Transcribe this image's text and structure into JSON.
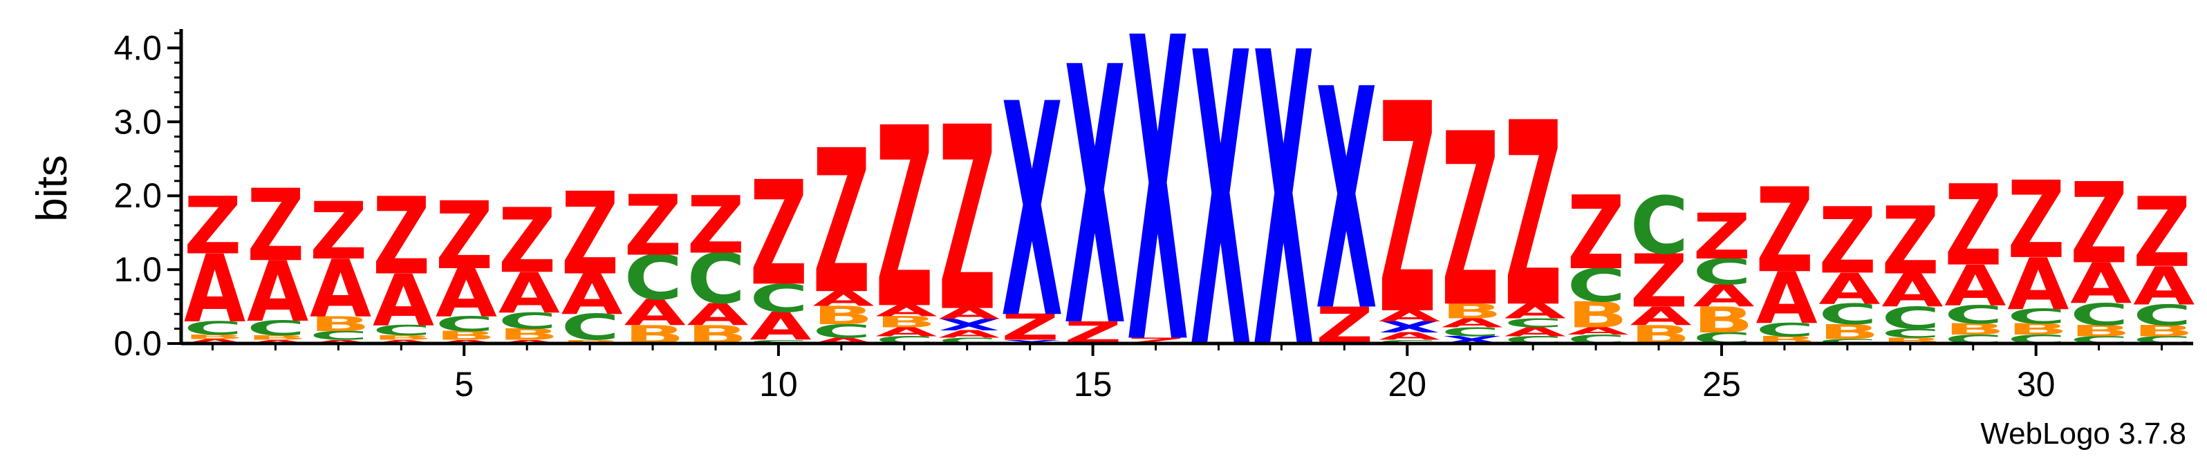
{
  "chart_data": {
    "type": "sequence-logo",
    "ylabel": "bits",
    "ylim": [
      0,
      4.2
    ],
    "y_ticks": [
      0.0,
      1.0,
      2.0,
      3.0,
      4.0
    ],
    "y_tick_labels": [
      "0.0",
      "1.0",
      "2.0",
      "3.0",
      "4.0"
    ],
    "y_minor_step": 0.2,
    "xlim": [
      0.5,
      32.5
    ],
    "x_ticks": [
      5,
      10,
      15,
      20,
      25,
      30
    ],
    "x_tick_labels": [
      "5",
      "10",
      "15",
      "20",
      "25",
      "30"
    ],
    "x_minor_step": 1,
    "colors": {
      "Z": "#ff0000",
      "A": "#ff0000",
      "X": "#0000ff",
      "C": "#228b22",
      "B": "#ff8c00"
    },
    "positions": [
      {
        "pos": 1,
        "stack": [
          [
            "A",
            0.06
          ],
          [
            "B",
            0.06
          ],
          [
            "C",
            0.18
          ],
          [
            "A",
            0.92
          ],
          [
            "Z",
            0.78
          ]
        ]
      },
      {
        "pos": 2,
        "stack": [
          [
            "A",
            0.05
          ],
          [
            "B",
            0.06
          ],
          [
            "C",
            0.2
          ],
          [
            "A",
            0.82
          ],
          [
            "Z",
            0.98
          ]
        ]
      },
      {
        "pos": 3,
        "stack": [
          [
            "A",
            0.05
          ],
          [
            "C",
            0.12
          ],
          [
            "B",
            0.2
          ],
          [
            "A",
            0.78
          ],
          [
            "Z",
            0.78
          ]
        ]
      },
      {
        "pos": 4,
        "stack": [
          [
            "A",
            0.05
          ],
          [
            "B",
            0.06
          ],
          [
            "C",
            0.14
          ],
          [
            "A",
            0.7
          ],
          [
            "Z",
            1.05
          ]
        ]
      },
      {
        "pos": 5,
        "stack": [
          [
            "A",
            0.05
          ],
          [
            "B",
            0.12
          ],
          [
            "C",
            0.2
          ],
          [
            "A",
            0.65
          ],
          [
            "Z",
            0.92
          ]
        ]
      },
      {
        "pos": 6,
        "stack": [
          [
            "A",
            0.05
          ],
          [
            "B",
            0.15
          ],
          [
            "C",
            0.22
          ],
          [
            "A",
            0.55
          ],
          [
            "Z",
            0.88
          ]
        ]
      },
      {
        "pos": 7,
        "stack": [
          [
            "B",
            0.05
          ],
          [
            "C",
            0.35
          ],
          [
            "A",
            0.55
          ],
          [
            "Z",
            1.12
          ]
        ]
      },
      {
        "pos": 8,
        "stack": [
          [
            "B",
            0.25
          ],
          [
            "A",
            0.35
          ],
          [
            "C",
            0.6
          ],
          [
            "Z",
            0.82
          ]
        ]
      },
      {
        "pos": 9,
        "stack": [
          [
            "B",
            0.25
          ],
          [
            "A",
            0.3
          ],
          [
            "C",
            0.68
          ],
          [
            "Z",
            0.78
          ]
        ]
      },
      {
        "pos": 10,
        "stack": [
          [
            "C",
            0.05
          ],
          [
            "A",
            0.38
          ],
          [
            "C",
            0.38
          ],
          [
            "Z",
            1.42
          ]
        ]
      },
      {
        "pos": 11,
        "stack": [
          [
            "A",
            0.08
          ],
          [
            "C",
            0.18
          ],
          [
            "B",
            0.25
          ],
          [
            "A",
            0.2
          ],
          [
            "Z",
            1.95
          ]
        ]
      },
      {
        "pos": 12,
        "stack": [
          [
            "C",
            0.1
          ],
          [
            "A",
            0.12
          ],
          [
            "B",
            0.15
          ],
          [
            "A",
            0.15
          ],
          [
            "Z",
            2.45
          ]
        ]
      },
      {
        "pos": 13,
        "stack": [
          [
            "C",
            0.08
          ],
          [
            "A",
            0.1
          ],
          [
            "X",
            0.15
          ],
          [
            "A",
            0.15
          ],
          [
            "Z",
            2.5
          ]
        ]
      },
      {
        "pos": 14,
        "stack": [
          [
            "X",
            0.05
          ],
          [
            "Z",
            0.35
          ],
          [
            "X",
            2.9
          ]
        ]
      },
      {
        "pos": 15,
        "stack": [
          [
            "Z",
            0.3
          ],
          [
            "X",
            3.5
          ]
        ]
      },
      {
        "pos": 16,
        "stack": [
          [
            "Z",
            0.08
          ],
          [
            "X",
            4.12
          ]
        ]
      },
      {
        "pos": 17,
        "stack": [
          [
            "X",
            4.0
          ]
        ]
      },
      {
        "pos": 18,
        "stack": [
          [
            "X",
            4.0
          ]
        ]
      },
      {
        "pos": 19,
        "stack": [
          [
            "Z",
            0.5
          ],
          [
            "X",
            3.0
          ]
        ]
      },
      {
        "pos": 20,
        "stack": [
          [
            "C",
            0.05
          ],
          [
            "A",
            0.1
          ],
          [
            "X",
            0.15
          ],
          [
            "A",
            0.15
          ],
          [
            "Z",
            2.85
          ]
        ]
      },
      {
        "pos": 21,
        "stack": [
          [
            "X",
            0.1
          ],
          [
            "C",
            0.12
          ],
          [
            "A",
            0.12
          ],
          [
            "B",
            0.2
          ],
          [
            "Z",
            2.35
          ]
        ]
      },
      {
        "pos": 22,
        "stack": [
          [
            "C",
            0.1
          ],
          [
            "A",
            0.12
          ],
          [
            "C",
            0.12
          ],
          [
            "A",
            0.2
          ],
          [
            "Z",
            2.5
          ]
        ]
      },
      {
        "pos": 23,
        "stack": [
          [
            "C",
            0.12
          ],
          [
            "A",
            0.1
          ],
          [
            "B",
            0.35
          ],
          [
            "C",
            0.45
          ],
          [
            "Z",
            1.0
          ]
        ]
      },
      {
        "pos": 24,
        "stack": [
          [
            "B",
            0.25
          ],
          [
            "A",
            0.25
          ],
          [
            "Z",
            0.72
          ],
          [
            "C",
            0.78
          ]
        ]
      },
      {
        "pos": 25,
        "stack": [
          [
            "C",
            0.15
          ],
          [
            "B",
            0.35
          ],
          [
            "A",
            0.3
          ],
          [
            "C",
            0.35
          ],
          [
            "Z",
            0.62
          ]
        ]
      },
      {
        "pos": 26,
        "stack": [
          [
            "B",
            0.1
          ],
          [
            "C",
            0.18
          ],
          [
            "A",
            0.7
          ],
          [
            "Z",
            1.15
          ]
        ]
      },
      {
        "pos": 27,
        "stack": [
          [
            "C",
            0.06
          ],
          [
            "B",
            0.2
          ],
          [
            "C",
            0.28
          ],
          [
            "A",
            0.42
          ],
          [
            "Z",
            0.9
          ]
        ]
      },
      {
        "pos": 28,
        "stack": [
          [
            "B",
            0.08
          ],
          [
            "C",
            0.12
          ],
          [
            "C",
            0.3
          ],
          [
            "A",
            0.45
          ],
          [
            "Z",
            0.92
          ]
        ]
      },
      {
        "pos": 29,
        "stack": [
          [
            "C",
            0.12
          ],
          [
            "B",
            0.15
          ],
          [
            "C",
            0.25
          ],
          [
            "A",
            0.55
          ],
          [
            "Z",
            1.1
          ]
        ]
      },
      {
        "pos": 30,
        "stack": [
          [
            "C",
            0.12
          ],
          [
            "B",
            0.15
          ],
          [
            "C",
            0.2
          ],
          [
            "A",
            0.7
          ],
          [
            "Z",
            1.05
          ]
        ]
      },
      {
        "pos": 31,
        "stack": [
          [
            "C",
            0.1
          ],
          [
            "B",
            0.15
          ],
          [
            "C",
            0.3
          ],
          [
            "A",
            0.55
          ],
          [
            "Z",
            1.1
          ]
        ]
      },
      {
        "pos": 32,
        "stack": [
          [
            "C",
            0.1
          ],
          [
            "B",
            0.15
          ],
          [
            "C",
            0.28
          ],
          [
            "A",
            0.52
          ],
          [
            "Z",
            0.95
          ]
        ]
      }
    ]
  },
  "footer": {
    "credit": "WebLogo 3.7.8"
  }
}
